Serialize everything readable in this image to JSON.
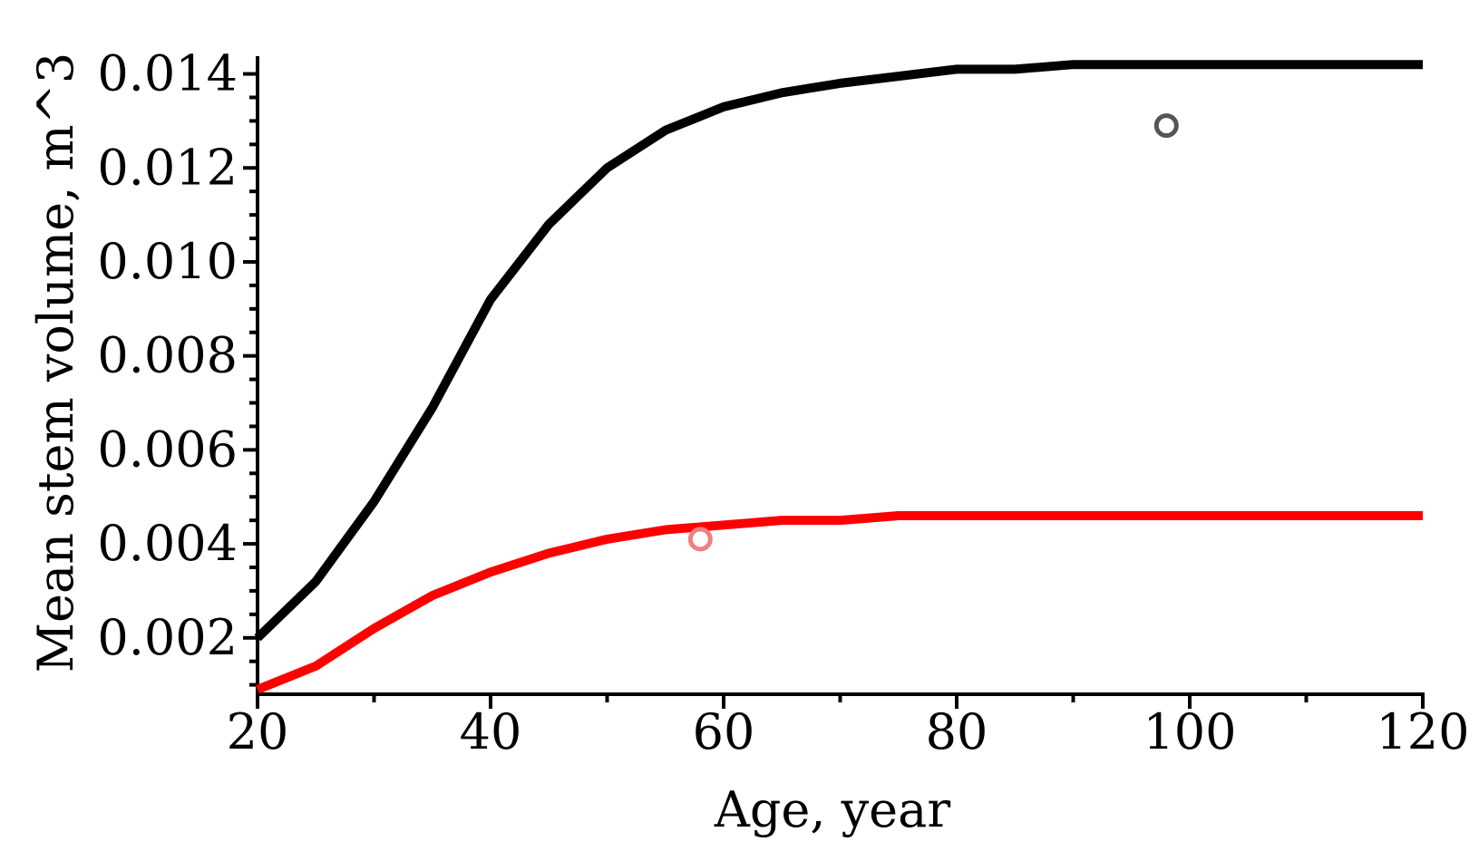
{
  "chart_data": {
    "type": "line",
    "title": "",
    "xlabel": "Age, year",
    "ylabel": "Mean stem volume, m^3",
    "xlim": [
      20,
      120
    ],
    "ylim": [
      0.0008,
      0.0143
    ],
    "x_ticks": [
      20,
      40,
      60,
      80,
      100,
      120
    ],
    "x_tick_labels": [
      "20",
      "40",
      "60",
      "80",
      "100",
      "120"
    ],
    "x_minor_step": 10,
    "y_ticks": [
      0.002,
      0.004,
      0.006,
      0.008,
      0.01,
      0.012,
      0.014
    ],
    "y_tick_labels": [
      "0.002",
      "0.004",
      "0.006",
      "0.008",
      "0.010",
      "0.012",
      "0.014"
    ],
    "y_minor_step": 0.0005,
    "grid": false,
    "legend": "none",
    "series": [
      {
        "color": "#000000",
        "x": [
          20,
          25,
          30,
          35,
          40,
          45,
          50,
          55,
          60,
          65,
          70,
          75,
          80,
          85,
          90,
          95,
          100,
          105,
          110,
          115,
          120
        ],
        "y": [
          0.002,
          0.0032,
          0.0049,
          0.0069,
          0.0092,
          0.0108,
          0.012,
          0.0128,
          0.0133,
          0.0136,
          0.0138,
          0.01395,
          0.0141,
          0.0141,
          0.0142,
          0.0142,
          0.0142,
          0.0142,
          0.0142,
          0.0142,
          0.0142
        ]
      },
      {
        "color": "#ff0000",
        "x": [
          20,
          25,
          30,
          35,
          40,
          45,
          50,
          55,
          60,
          65,
          70,
          75,
          80,
          85,
          90,
          95,
          100,
          105,
          110,
          115,
          120
        ],
        "y": [
          0.0009,
          0.0014,
          0.0022,
          0.0029,
          0.0034,
          0.0038,
          0.0041,
          0.0043,
          0.0044,
          0.0045,
          0.0045,
          0.0046,
          0.0046,
          0.0046,
          0.0046,
          0.0046,
          0.0046,
          0.0046,
          0.0046,
          0.0046,
          0.0046
        ]
      }
    ],
    "points": [
      {
        "x": 98,
        "y": 0.0129,
        "color": "#555555"
      },
      {
        "x": 58,
        "y": 0.0041,
        "color": "#f08080"
      }
    ]
  }
}
